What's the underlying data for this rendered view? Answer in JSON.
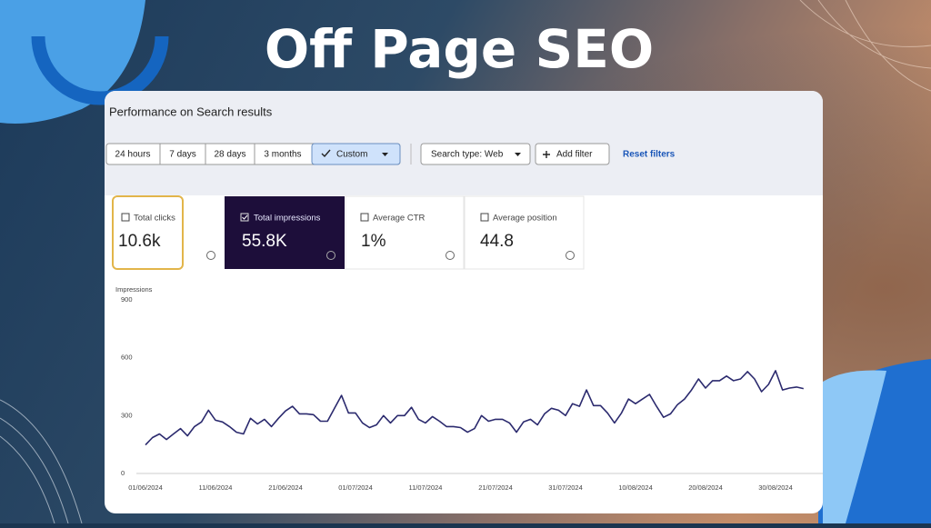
{
  "header": {
    "title": "Off Page SEO"
  },
  "panel": {
    "title": "Performance on Search results",
    "date_ranges": [
      "24 hours",
      "7 days",
      "28 days",
      "3 months",
      "Custom"
    ],
    "search_type": "Search type: Web",
    "add_filter": "Add filter",
    "reset": "Reset filters"
  },
  "metrics": [
    {
      "label": "Total clicks",
      "value": "10.6k"
    },
    {
      "label": "Total impressions",
      "value": "55.8K"
    },
    {
      "label": "Average CTR",
      "value": "1%"
    },
    {
      "label": "Average position",
      "value": "44.8"
    }
  ],
  "chart_data": {
    "type": "line",
    "y_label": "Impressions",
    "color": "#2b2a6e",
    "x": [
      "01/06/2024",
      "02/06/2024",
      "03/06/2024",
      "04/06/2024",
      "05/06/2024",
      "06/06/2024",
      "07/06/2024",
      "08/06/2024",
      "09/06/2024",
      "10/06/2024",
      "11/06/2024",
      "12/06/2024",
      "13/06/2024",
      "14/06/2024",
      "15/06/2024",
      "16/06/2024",
      "17/06/2024",
      "18/06/2024",
      "19/06/2024",
      "20/06/2024",
      "21/06/2024",
      "22/06/2024",
      "23/06/2024",
      "24/06/2024",
      "25/06/2024",
      "26/06/2024",
      "27/06/2024",
      "28/06/2024",
      "29/06/2024",
      "30/06/2024",
      "01/07/2024",
      "02/07/2024",
      "03/07/2024",
      "04/07/2024",
      "05/07/2024",
      "06/07/2024",
      "07/07/2024",
      "08/07/2024",
      "09/07/2024",
      "10/07/2024",
      "11/07/2024",
      "12/07/2024",
      "13/07/2024",
      "14/07/2024",
      "15/07/2024",
      "16/07/2024",
      "17/07/2024",
      "18/07/2024",
      "19/07/2024",
      "20/07/2024",
      "21/07/2024",
      "22/07/2024",
      "23/07/2024",
      "24/07/2024",
      "25/07/2024",
      "26/07/2024",
      "27/07/2024",
      "28/07/2024",
      "29/07/2024",
      "30/07/2024",
      "31/07/2024",
      "01/08/2024",
      "02/08/2024",
      "03/08/2024",
      "04/08/2024",
      "05/08/2024",
      "06/08/2024",
      "07/08/2024",
      "08/08/2024",
      "09/08/2024",
      "10/08/2024",
      "11/08/2024",
      "12/08/2024",
      "13/08/2024",
      "14/08/2024",
      "15/08/2024",
      "16/08/2024",
      "17/08/2024",
      "18/08/2024",
      "19/08/2024",
      "20/08/2024",
      "21/08/2024",
      "22/08/2024",
      "23/08/2024",
      "24/08/2024",
      "25/08/2024",
      "26/08/2024",
      "27/08/2024",
      "28/08/2024",
      "29/08/2024",
      "30/08/2024",
      "31/08/2024",
      "01/09/2024",
      "02/09/2024",
      "03/09/2024"
    ],
    "values": [
      148,
      186,
      205,
      176,
      205,
      233,
      195,
      243,
      267,
      328,
      276,
      267,
      243,
      214,
      205,
      286,
      257,
      281,
      243,
      286,
      324,
      348,
      309,
      309,
      305,
      271,
      271,
      338,
      405,
      314,
      314,
      262,
      238,
      252,
      300,
      262,
      300,
      300,
      343,
      281,
      262,
      295,
      271,
      243,
      243,
      238,
      214,
      233,
      300,
      271,
      281,
      281,
      262,
      214,
      267,
      281,
      252,
      309,
      338,
      328,
      300,
      362,
      348,
      433,
      352,
      352,
      314,
      262,
      314,
      386,
      362,
      386,
      410,
      348,
      291,
      309,
      357,
      386,
      433,
      490,
      443,
      481,
      481,
      505,
      481,
      490,
      528,
      490,
      424,
      462,
      533,
      433,
      443,
      448,
      440
    ],
    "xticks": [
      "01/06/2024",
      "11/06/2024",
      "21/06/2024",
      "01/07/2024",
      "11/07/2024",
      "21/07/2024",
      "31/07/2024",
      "10/08/2024",
      "20/08/2024",
      "30/08/2024"
    ],
    "ylim": [
      0,
      900
    ],
    "yticks": [
      0,
      300,
      600,
      900
    ],
    "grid": false
  }
}
